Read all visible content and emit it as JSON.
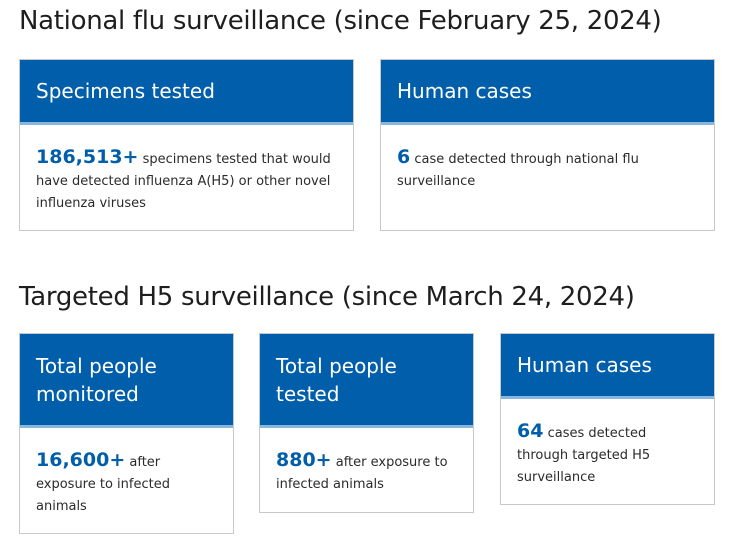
{
  "national": {
    "title": "National flu surveillance (since February 25, 2024)",
    "specimens": {
      "header": "Specimens tested",
      "value": "186,513+",
      "text": " specimens tested that would have detected influenza A(H5) or other novel influenza viruses"
    },
    "cases": {
      "header": "Human cases",
      "value": "6",
      "text": " case detected through national flu surveillance"
    }
  },
  "targeted": {
    "title": "Targeted H5 surveillance (since March 24, 2024)",
    "monitored": {
      "header": "Total people monitored",
      "value": "16,600+",
      "text": " after exposure to infected animals"
    },
    "tested": {
      "header": "Total people tested",
      "value": "880+",
      "text": " after exposure to infected animals"
    },
    "cases": {
      "header": "Human cases",
      "value": "64",
      "text": " cases detected through targeted H5 surveillance"
    }
  },
  "colors": {
    "header_bg": "#005eaa",
    "accent_line": "#8ab6de",
    "number": "#005eaa"
  }
}
